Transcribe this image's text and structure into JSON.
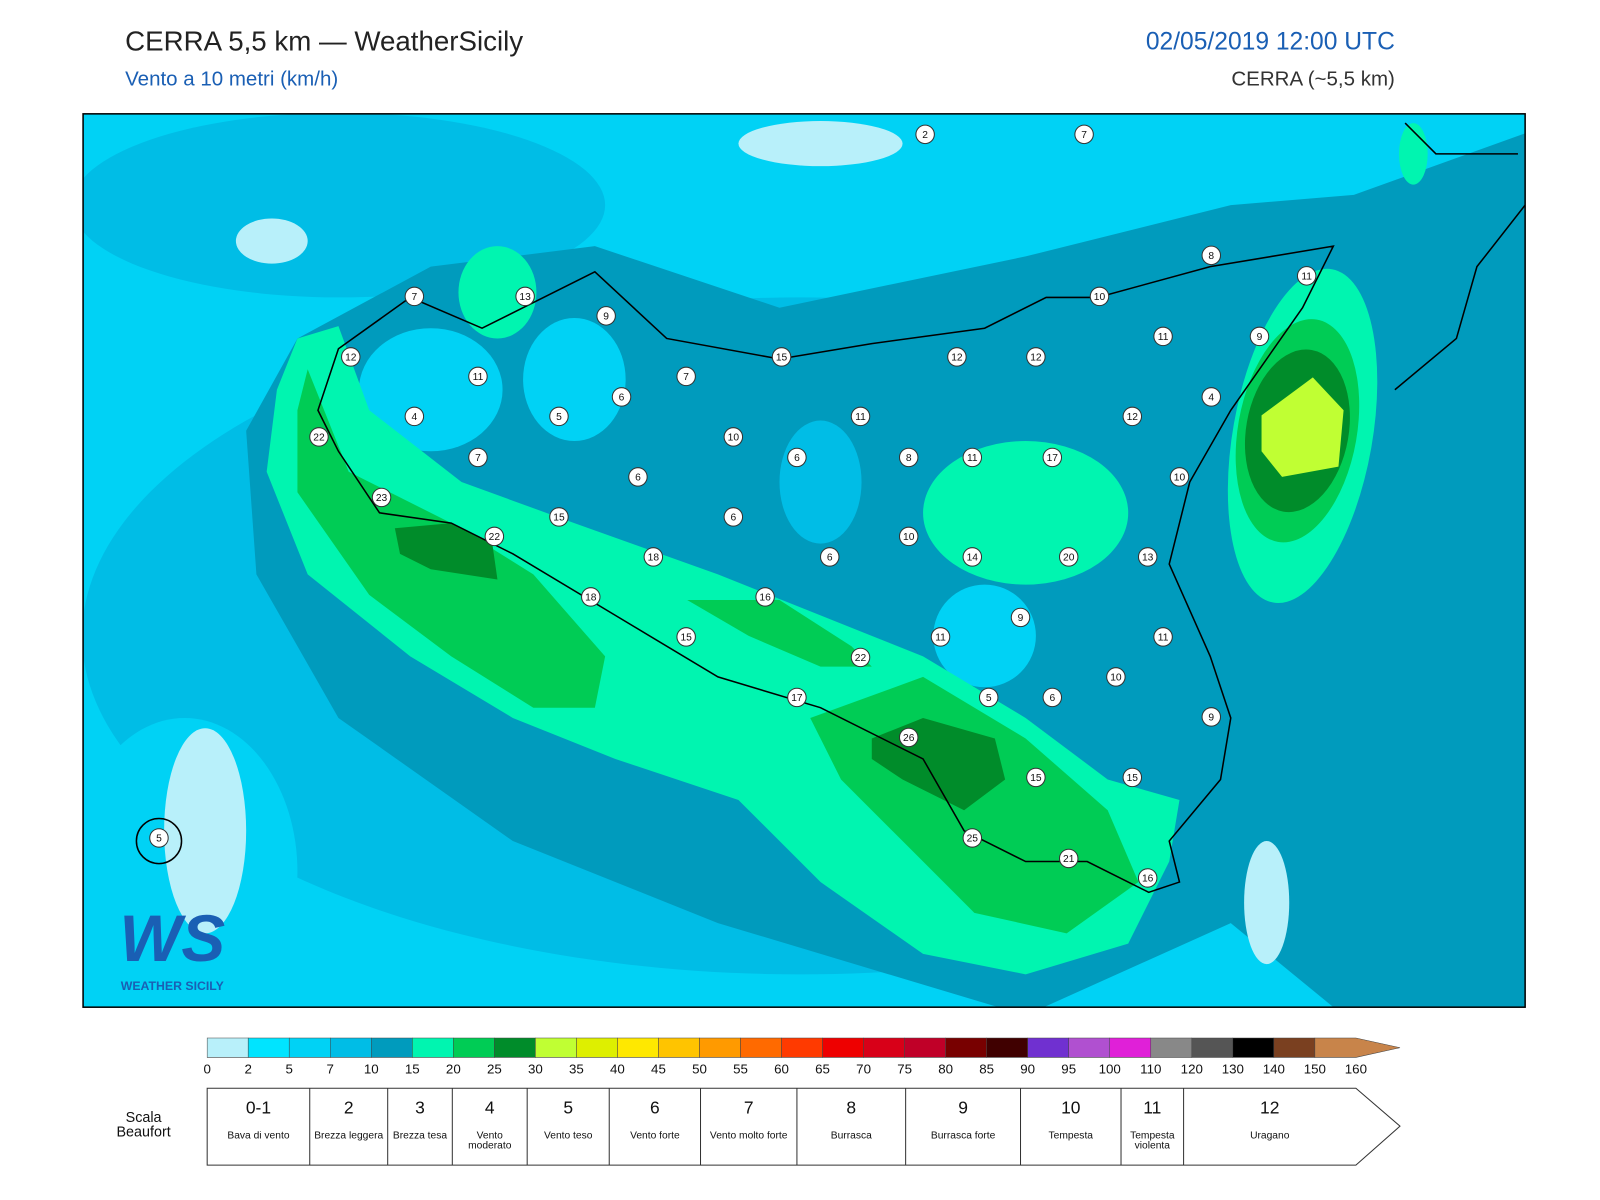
{
  "header": {
    "title": "CERRA 5,5 km — WeatherSicily",
    "subtitle": "Vento a 10 metri (km/h)",
    "datetime": "02/05/2019 12:00 UTC",
    "model": "CERRA (~5,5 km)"
  },
  "map": {
    "stations": [
      2,
      7,
      8,
      11,
      7,
      13,
      9,
      10,
      11,
      9,
      12,
      15,
      12,
      12,
      11,
      7,
      6,
      4,
      4,
      5,
      11,
      12,
      22,
      10,
      7,
      6,
      8,
      11,
      17,
      6,
      10,
      23,
      15,
      6,
      22,
      10,
      18,
      6,
      14,
      20,
      13,
      18,
      16,
      9,
      15,
      11,
      11,
      22,
      10,
      17,
      5,
      6,
      9,
      26,
      15,
      15,
      5,
      25,
      21,
      16
    ]
  },
  "logo": {
    "mark": "WS",
    "name": "WEATHER SICILY"
  },
  "colorbar": {
    "ticks": [
      0,
      2,
      5,
      7,
      10,
      15,
      20,
      25,
      30,
      35,
      40,
      45,
      50,
      55,
      60,
      65,
      70,
      75,
      80,
      85,
      90,
      95,
      100,
      110,
      120,
      130,
      140,
      150,
      160
    ],
    "colors": [
      "#b8f0fa",
      "#00e4ff",
      "#00d2f5",
      "#00bde6",
      "#009bbd",
      "#00f5b0",
      "#00cc55",
      "#008c2a",
      "#c0ff33",
      "#deef00",
      "#ffe800",
      "#ffc400",
      "#ff9a00",
      "#ff6a00",
      "#ff3a00",
      "#ee0000",
      "#d80018",
      "#c00028",
      "#780000",
      "#400000",
      "#7030d0",
      "#b050d0",
      "#e020d8",
      "#888888",
      "#555555",
      "#000000",
      "#7a4020",
      "#c8844a"
    ]
  },
  "beaufort": {
    "title": "Scala Beaufort",
    "levels": [
      {
        "force": "0-1",
        "label": "Bava di vento"
      },
      {
        "force": "2",
        "label": "Brezza leggera"
      },
      {
        "force": "3",
        "label": "Brezza tesa"
      },
      {
        "force": "4",
        "label": "Vento moderato"
      },
      {
        "force": "5",
        "label": "Vento teso"
      },
      {
        "force": "6",
        "label": "Vento forte"
      },
      {
        "force": "7",
        "label": "Vento molto forte"
      },
      {
        "force": "8",
        "label": "Burrasca"
      },
      {
        "force": "9",
        "label": "Burrasca forte"
      },
      {
        "force": "10",
        "label": "Tempesta"
      },
      {
        "force": "11",
        "label": "Tempesta violenta"
      },
      {
        "force": "12",
        "label": "Uragano"
      }
    ]
  }
}
